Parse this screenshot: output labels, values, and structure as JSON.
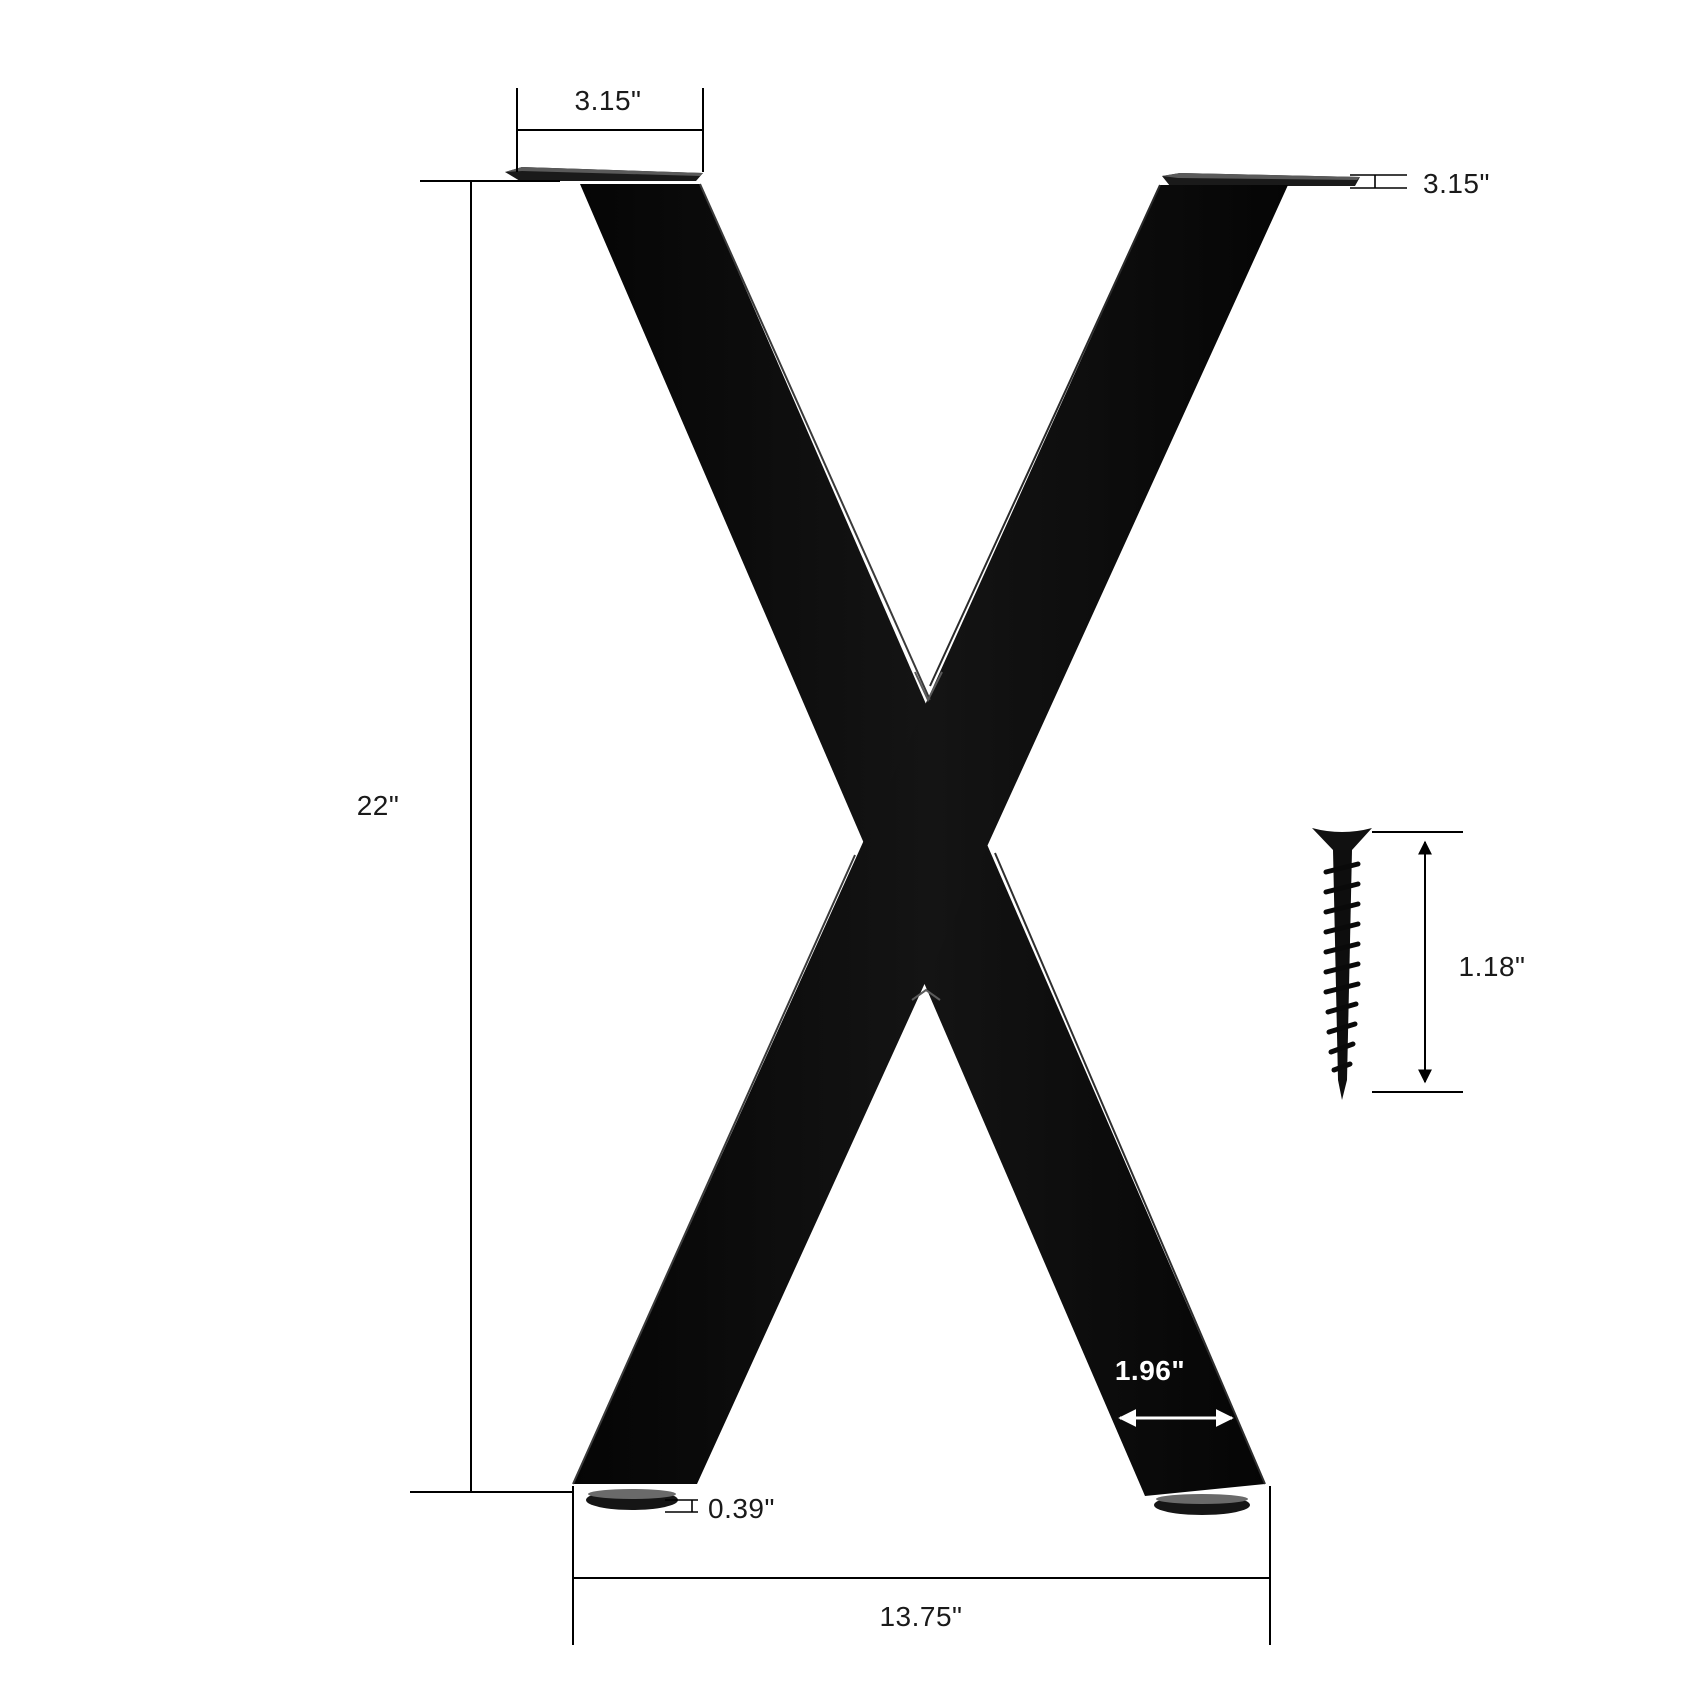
{
  "colors": {
    "background": "#ffffff",
    "metal": "#0b0b0b",
    "metal_highlight": "#3a3a3a",
    "dimension_line": "#000000",
    "label": "#1a1a1a",
    "inner_label": "#ffffff"
  },
  "dimensions": {
    "plate_width": "3.15\"",
    "plate_thickness": "3.15\"",
    "height": "22\"",
    "screw_length": "1.18\"",
    "tube_width": "1.96\"",
    "foot_height": "0.39\"",
    "base_width": "13.75\""
  },
  "icons": {
    "leg": "x-frame-leg-icon",
    "screw": "wood-screw-icon",
    "arrow": "double-arrow-icon"
  }
}
